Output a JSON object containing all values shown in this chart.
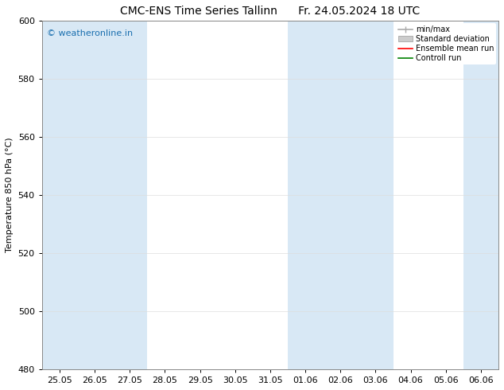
{
  "title_left": "CMC-ENS Time Series Tallinn",
  "title_right": "Fr. 24.05.2024 18 UTC",
  "ylabel": "Temperature 850 hPa (°C)",
  "ylim": [
    480,
    600
  ],
  "yticks": [
    480,
    500,
    520,
    540,
    560,
    580,
    600
  ],
  "xlabels": [
    "25.05",
    "26.05",
    "27.05",
    "28.05",
    "29.05",
    "30.05",
    "31.05",
    "01.06",
    "02.06",
    "03.06",
    "04.06",
    "05.06",
    "06.06"
  ],
  "shaded_columns_idx": [
    0,
    1,
    2,
    7,
    8,
    9,
    12
  ],
  "shade_color": "#d8e8f5",
  "background_color": "#ffffff",
  "plot_bg_color": "#ffffff",
  "watermark": "© weatheronline.in",
  "watermark_color": "#1a6faf",
  "legend_labels": [
    "min/max",
    "Standard deviation",
    "Ensemble mean run",
    "Controll run"
  ],
  "legend_colors": [
    "#aaaaaa",
    "#cccccc",
    "#ff0000",
    "#008000"
  ],
  "grid_color": "#cccccc",
  "title_fontsize": 10,
  "label_fontsize": 8,
  "tick_fontsize": 8
}
